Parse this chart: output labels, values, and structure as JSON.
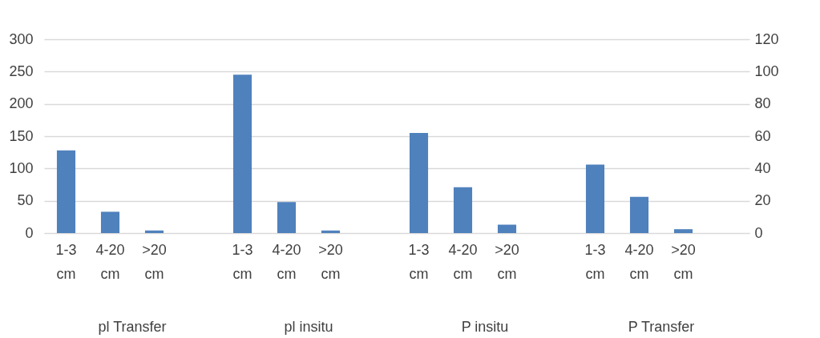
{
  "chart_data": {
    "type": "bar",
    "categories": [
      "1-3 cm",
      "4-20 cm",
      ">20 cm",
      null,
      "1-3 cm",
      "4-20 cm",
      ">20 cm",
      null,
      "1-3 cm",
      "4-20 cm",
      ">20 cm",
      null,
      "1-3 cm",
      "4-20 cm",
      ">20 cm",
      null
    ],
    "series": [
      {
        "color": "#4f81bd",
        "values": [
          128,
          33,
          4,
          null,
          245,
          48,
          4,
          null,
          155,
          71,
          13,
          null,
          106,
          56,
          6,
          null
        ]
      }
    ],
    "ylim": [
      0,
      300
    ],
    "yticks": [
      0,
      50,
      100,
      150,
      200,
      250,
      300
    ],
    "y2lim": [
      0,
      120
    ],
    "y2ticks": [
      0,
      20,
      40,
      60,
      80,
      100,
      120
    ],
    "annotations": [
      "pl Transfer",
      "pl insitu",
      "P insitu",
      "P Transfer"
    ],
    "grid": "y",
    "legend": false
  }
}
